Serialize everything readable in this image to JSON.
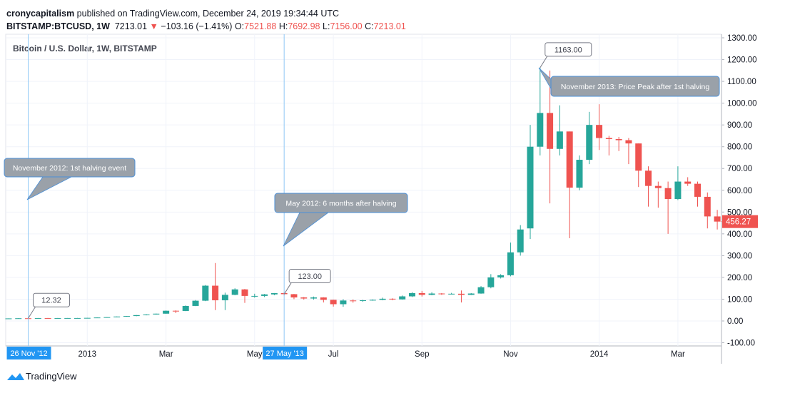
{
  "header": {
    "author": "cronycapitalism",
    "published": "published on TradingView.com, December 24, 2019 19:34:44 UTC",
    "symbol": "BITSTAMP:BTCUSD, 1W",
    "price": "7213.01",
    "arrow": "▼",
    "change": "−103.16 (−1.41%)",
    "ohlc": [
      {
        "key": "O:",
        "value": "7521.88"
      },
      {
        "key": "H:",
        "value": "7692.98"
      },
      {
        "key": "L:",
        "value": "7156.00"
      },
      {
        "key": "C:",
        "value": "7213.01"
      }
    ]
  },
  "chart_data": {
    "type": "candlestick",
    "title": "Bitcoin / U.S. Dollar, 1W, BITSTAMP",
    "x": [
      "2012-11-12",
      "2012-11-19",
      "2012-11-26",
      "2012-12-03",
      "2012-12-10",
      "2012-12-17",
      "2012-12-24",
      "2012-12-31",
      "2013-01-07",
      "2013-01-14",
      "2013-01-21",
      "2013-01-28",
      "2013-02-04",
      "2013-02-11",
      "2013-02-18",
      "2013-02-25",
      "2013-03-04",
      "2013-03-11",
      "2013-03-18",
      "2013-03-25",
      "2013-04-01",
      "2013-04-08",
      "2013-04-15",
      "2013-04-22",
      "2013-04-29",
      "2013-05-06",
      "2013-05-13",
      "2013-05-20",
      "2013-05-27",
      "2013-06-03",
      "2013-06-10",
      "2013-06-17",
      "2013-06-24",
      "2013-07-01",
      "2013-07-08",
      "2013-07-15",
      "2013-07-22",
      "2013-07-29",
      "2013-08-05",
      "2013-08-12",
      "2013-08-19",
      "2013-08-26",
      "2013-09-02",
      "2013-09-09",
      "2013-09-16",
      "2013-09-23",
      "2013-09-30",
      "2013-10-07",
      "2013-10-14",
      "2013-10-21",
      "2013-10-28",
      "2013-11-04",
      "2013-11-11",
      "2013-11-18",
      "2013-11-25",
      "2013-12-02",
      "2013-12-09",
      "2013-12-16",
      "2013-12-23",
      "2013-12-30",
      "2014-01-06",
      "2014-01-13",
      "2014-01-20",
      "2014-01-27",
      "2014-02-03",
      "2014-02-10",
      "2014-02-17",
      "2014-02-24",
      "2014-03-03",
      "2014-03-10",
      "2014-03-17",
      "2014-03-24",
      "2014-03-31"
    ],
    "open": [
      11.0,
      11.7,
      12.4,
      12.3,
      13.4,
      13.3,
      13.4,
      13.5,
      13.5,
      14.2,
      15.9,
      17.5,
      20.4,
      22.6,
      26.8,
      29.9,
      33.5,
      46.9,
      46.0,
      69,
      93,
      162,
      95,
      120,
      145,
      115,
      115,
      122,
      128,
      123,
      108,
      103,
      108,
      97,
      77,
      94,
      92,
      95,
      97,
      102,
      99,
      113,
      128,
      120,
      126,
      124,
      125,
      120,
      126,
      155,
      200,
      210,
      315,
      425,
      800,
      955,
      790,
      870,
      612,
      740,
      900,
      840,
      835,
      830,
      815,
      690,
      620,
      610,
      560,
      640,
      630,
      570,
      480
    ],
    "high": [
      11.8,
      12.5,
      12.8,
      13.5,
      13.8,
      13.6,
      13.6,
      13.8,
      14.5,
      16.5,
      18.0,
      20.7,
      23.0,
      27.0,
      31.0,
      34.0,
      48.0,
      48.6,
      71,
      96,
      165,
      266,
      130,
      150,
      147,
      125,
      124,
      128,
      133,
      124,
      110,
      112,
      109,
      98,
      100,
      99,
      97,
      99,
      107,
      104,
      117,
      132,
      138,
      132,
      128,
      129,
      140,
      128,
      160,
      215,
      215,
      360,
      440,
      900,
      1163,
      1150,
      990,
      870,
      760,
      960,
      995,
      850,
      845,
      840,
      815,
      710,
      640,
      640,
      710,
      660,
      640,
      590,
      510
    ],
    "low": [
      10.8,
      11.5,
      12.0,
      12.2,
      13.2,
      13.1,
      13.2,
      13.2,
      13.4,
      14.0,
      15.5,
      17.3,
      19.8,
      22.0,
      25.8,
      29.0,
      33.0,
      36.0,
      45,
      68,
      91,
      50,
      50,
      118,
      83,
      107,
      110,
      118,
      117,
      100,
      98,
      98,
      85,
      66,
      65,
      84,
      88,
      93,
      95,
      95,
      98,
      110,
      112,
      118,
      120,
      122,
      85,
      119,
      125,
      150,
      195,
      205,
      300,
      376,
      760,
      540,
      760,
      380,
      600,
      720,
      785,
      760,
      780,
      720,
      615,
      525,
      520,
      400,
      555,
      620,
      525,
      425,
      420
    ],
    "close": [
      11.7,
      12.4,
      12.32,
      13.4,
      13.3,
      13.4,
      13.5,
      13.5,
      14.2,
      15.9,
      17.5,
      20.4,
      22.6,
      26.8,
      29.9,
      33.5,
      46.9,
      46.0,
      69,
      93,
      162,
      95,
      120,
      145,
      115,
      115,
      122,
      128,
      123,
      108,
      103,
      108,
      97,
      77,
      94,
      92,
      95,
      97,
      102,
      99,
      113,
      128,
      120,
      126,
      124,
      125,
      120,
      126,
      155,
      200,
      210,
      315,
      420,
      800,
      955,
      790,
      870,
      612,
      740,
      900,
      840,
      835,
      830,
      815,
      690,
      620,
      610,
      560,
      640,
      630,
      570,
      480,
      456.27
    ],
    "last_close_label": "456.27",
    "up_color": "#26a69a",
    "down_color": "#ef5350",
    "grid": true,
    "ylim": [
      -114.6,
      1316.4
    ],
    "yticks": [
      {
        "value": -100,
        "label": "-100.00"
      },
      {
        "value": 0,
        "label": "0.00"
      },
      {
        "value": 100,
        "label": "100.00"
      },
      {
        "value": 200,
        "label": "200.00"
      },
      {
        "value": 300,
        "label": "300.00"
      },
      {
        "value": 400,
        "label": "400.00"
      },
      {
        "value": 500,
        "label": "500.00"
      },
      {
        "value": 600,
        "label": "600.00"
      },
      {
        "value": 700,
        "label": "700.00"
      },
      {
        "value": 800,
        "label": "800.00"
      },
      {
        "value": 900,
        "label": "900.00"
      },
      {
        "value": 1000,
        "label": "1000.00"
      },
      {
        "value": 1100,
        "label": "1100.00"
      },
      {
        "value": 1200,
        "label": "1200.00"
      },
      {
        "value": 1300,
        "label": "1300.00"
      }
    ],
    "xlim": [
      "2012-11-10",
      "2014-04-03"
    ],
    "xticks": [
      {
        "value": "2013-01-07",
        "label": "2013"
      },
      {
        "value": "2013-03-04",
        "label": "Mar"
      },
      {
        "value": "2013-05-06",
        "label": "May"
      },
      {
        "value": "2013-07-01",
        "label": "Jul"
      },
      {
        "value": "2013-09-02",
        "label": "Sep"
      },
      {
        "value": "2013-11-04",
        "label": "Nov"
      },
      {
        "value": "2014-01-06",
        "label": "2014"
      },
      {
        "value": "2014-03-03",
        "label": "Mar"
      }
    ],
    "date_markers": [
      {
        "value": "2012-11-26",
        "label": "26 Nov '12"
      },
      {
        "value": "2013-05-27",
        "label": "27 May '13"
      }
    ],
    "price_notes": [
      {
        "x": "2012-11-26",
        "value": 12.32,
        "label": "12.32"
      },
      {
        "x": "2013-05-27",
        "value": 123,
        "label": "123.00"
      },
      {
        "x": "2013-11-25",
        "value": 1163,
        "label": "1163.00"
      }
    ],
    "callouts": [
      "November 2012: 1st halving event",
      "May 2012: 6 months after halving",
      "November 2013: Price Peak after 1st halving"
    ]
  },
  "footer": {
    "brand": "TradingView"
  }
}
